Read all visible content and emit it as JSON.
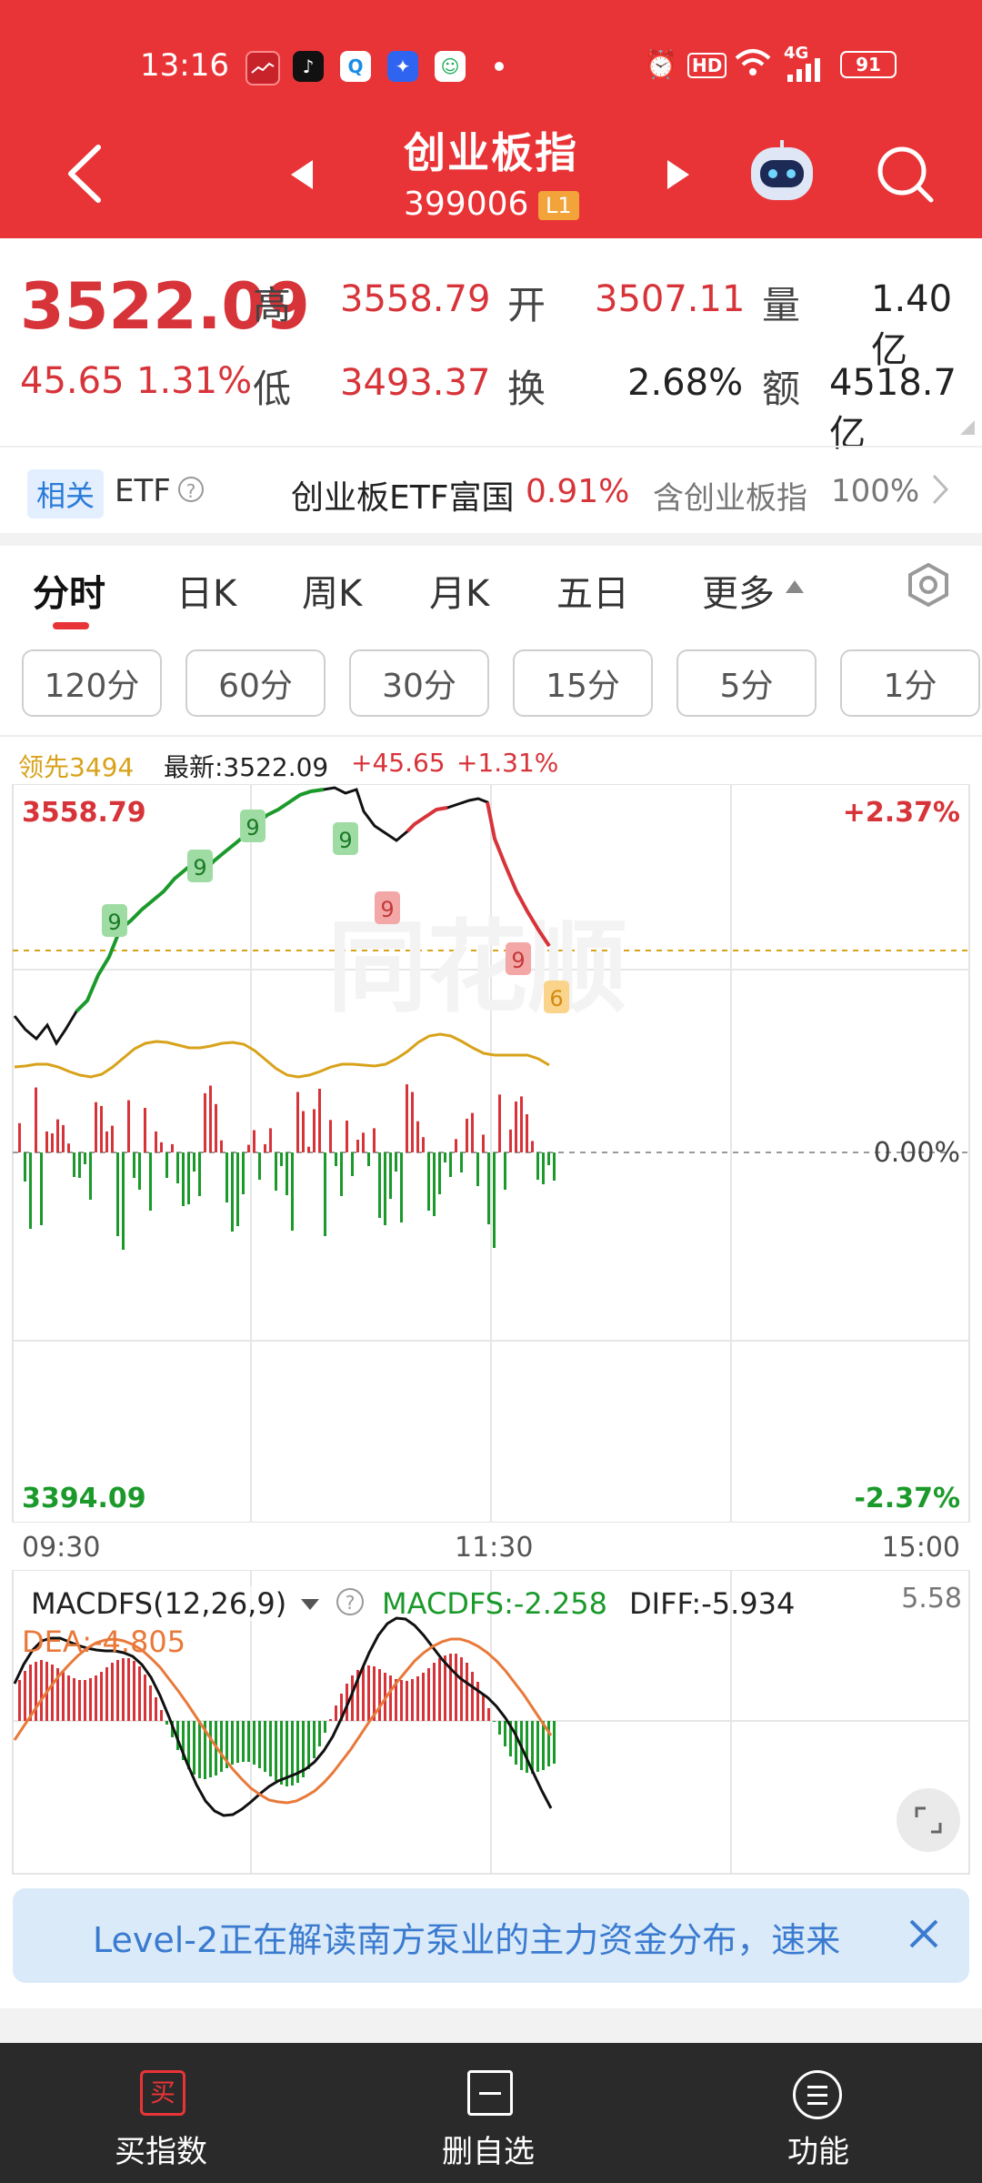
{
  "status_bar": {
    "time": "13:16",
    "hd": "HD",
    "signal": "4G",
    "battery": "91"
  },
  "header": {
    "title": "创业板指",
    "code": "399006",
    "level_badge": "L1"
  },
  "quote": {
    "price": "3522.09",
    "change": "45.65",
    "change_pct": "1.31%",
    "high_label": "高",
    "high": "3558.79",
    "low_label": "低",
    "low": "3493.37",
    "open_label": "开",
    "open": "3507.11",
    "turnover_label": "换",
    "turnover": "2.68%",
    "volume_label": "量",
    "volume": "1.40亿",
    "amount_label": "额",
    "amount": "4518.7亿"
  },
  "etf": {
    "tag": "相关",
    "label": "ETF",
    "name": "创业板ETF富国",
    "pct": "0.91%",
    "contains": "含创业板指",
    "weight": "100%"
  },
  "tabs": [
    {
      "label": "分时"
    },
    {
      "label": "日K"
    },
    {
      "label": "周K"
    },
    {
      "label": "月K"
    },
    {
      "label": "五日"
    },
    {
      "label": "更多"
    }
  ],
  "periods": [
    {
      "label": "120分"
    },
    {
      "label": "60分"
    },
    {
      "label": "30分"
    },
    {
      "label": "15分"
    },
    {
      "label": "5分"
    },
    {
      "label": "1分"
    }
  ],
  "chart_info": {
    "lead": "领先3494",
    "latest": "最新:3522.09",
    "chg": "+45.65",
    "chg_pct": "+1.31%"
  },
  "chart_axis": {
    "y_top": "3558.79",
    "y_bottom": "3394.09",
    "pct_top": "+2.37%",
    "pct_mid": "0.00%",
    "pct_bottom": "-2.37%",
    "t_start": "09:30",
    "t_mid": "11:30",
    "t_end": "15:00"
  },
  "nine_markers": [
    "9",
    "9",
    "9",
    "9",
    "9",
    "9",
    "6"
  ],
  "macd": {
    "name": "MACDFS(12,26,9)",
    "macdfs": "MACDFS:-2.258",
    "diff": "DIFF:-5.934",
    "dea": "DEA:-4.805",
    "max": "5.58"
  },
  "banner": {
    "text": "Level-2正在解读南方泵业的主力资金分布，速来"
  },
  "bottom_nav": [
    {
      "label": "买指数",
      "icon": "买"
    },
    {
      "label": "删自选"
    },
    {
      "label": "功能"
    }
  ],
  "colors": {
    "header_red": "#e93437",
    "up_red": "#d7343a",
    "down_green": "#1b9a2b",
    "avg_line": "#d8a21a"
  }
}
